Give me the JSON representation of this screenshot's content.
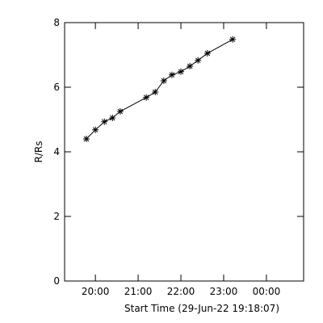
{
  "chart_data": {
    "type": "scatter-line",
    "xlabel": "Start Time (29-Jun-22 19:18:07)",
    "ylabel": "R/Rs",
    "x": [
      19.79,
      20.0,
      20.21,
      20.4,
      20.58,
      21.19,
      21.4,
      21.6,
      21.79,
      22.0,
      22.21,
      22.4,
      22.62,
      23.21
    ],
    "values": [
      4.4,
      4.68,
      4.93,
      5.05,
      5.25,
      5.68,
      5.85,
      6.2,
      6.38,
      6.48,
      6.65,
      6.83,
      7.05,
      7.48
    ],
    "color": "#000000",
    "xlim": [
      19.28,
      24.87
    ],
    "ylim": [
      0,
      8
    ],
    "xticks": [
      {
        "value": 20,
        "label": "20:00"
      },
      {
        "value": 21,
        "label": "21:00"
      },
      {
        "value": 22,
        "label": "22:00"
      },
      {
        "value": 23,
        "label": "23:00"
      },
      {
        "value": 24,
        "label": "00:00"
      }
    ],
    "yticks": [
      0,
      2,
      4,
      6,
      8
    ]
  }
}
